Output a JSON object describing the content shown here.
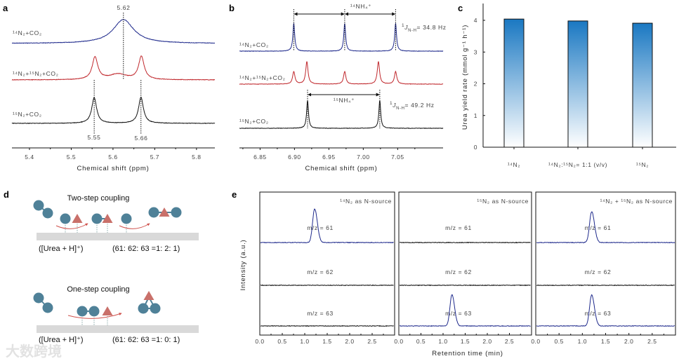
{
  "panel_labels": {
    "a": "a",
    "b": "b",
    "c": "c",
    "d": "d",
    "e": "e"
  },
  "colors": {
    "blue": "#1f2a8c",
    "red": "#c0282d",
    "black": "#111111",
    "bar_top": "#1a78c2",
    "bar_bottom": "#ffffff",
    "circle": "#4f8198",
    "triangle": "#c9706a",
    "surface": "#d9d9d9",
    "arrow": "#d0534e"
  },
  "chart_data": [
    {
      "panel": "a",
      "type": "line",
      "title": "",
      "xlabel": "Chemical shift (ppm)",
      "ylabel": "",
      "xlim": [
        5.358,
        5.844
      ],
      "xticks": [
        "5.4",
        "5.5",
        "5.6",
        "5.7",
        "5.8"
      ],
      "series": [
        {
          "name": "¹⁴N₂+CO₂",
          "color": "blue",
          "peaks": [
            {
              "x": 5.625,
              "h": 0.85,
              "w": 0.03
            }
          ]
        },
        {
          "name": "¹⁴N₂+¹⁵N₂+CO₂",
          "color": "red",
          "peaks": [
            {
              "x": 5.557,
              "h": 0.8,
              "w": 0.008
            },
            {
              "x": 5.668,
              "h": 0.82,
              "w": 0.008
            },
            {
              "x": 5.612,
              "h": 0.2,
              "w": 0.025
            }
          ]
        },
        {
          "name": "¹⁵N₂+CO₂",
          "color": "black",
          "peaks": [
            {
              "x": 5.555,
              "h": 0.92,
              "w": 0.007
            },
            {
              "x": 5.667,
              "h": 0.93,
              "w": 0.007
            }
          ]
        }
      ],
      "annotations": [
        {
          "text": "5.62",
          "x": 5.625
        },
        {
          "text": "5.55",
          "x": 5.555
        },
        {
          "text": "5.66",
          "x": 5.667
        }
      ]
    },
    {
      "panel": "b",
      "type": "line",
      "xlabel": "Chemical shift (ppm)",
      "xlim": [
        6.82,
        7.116
      ],
      "xticks": [
        "6.85",
        "6.90",
        "6.95",
        "7.00",
        "7.05"
      ],
      "series": [
        {
          "name": "¹⁴N₂+CO₂",
          "color": "blue",
          "peaks": [
            {
              "x": 6.899,
              "h": 1.0,
              "w": 0.0016
            },
            {
              "x": 6.973,
              "h": 1.0,
              "w": 0.0016
            },
            {
              "x": 7.047,
              "h": 1.0,
              "w": 0.0016
            }
          ]
        },
        {
          "name": "¹⁴N₂+¹⁵N₂+CO₂",
          "color": "red",
          "peaks": [
            {
              "x": 6.899,
              "h": 0.45,
              "w": 0.002
            },
            {
              "x": 6.918,
              "h": 0.8,
              "w": 0.002
            },
            {
              "x": 6.973,
              "h": 0.45,
              "w": 0.002
            },
            {
              "x": 7.022,
              "h": 0.8,
              "w": 0.002
            },
            {
              "x": 7.047,
              "h": 0.45,
              "w": 0.002
            }
          ]
        },
        {
          "name": "¹⁵N₂+CO₂",
          "color": "black",
          "peaks": [
            {
              "x": 6.919,
              "h": 1.0,
              "w": 0.0016
            },
            {
              "x": 7.024,
              "h": 1.0,
              "w": 0.0016
            }
          ]
        }
      ],
      "annotations": {
        "nh4_14": "¹⁴NH₄⁺",
        "nh4_15": "¹⁵NH₄⁺",
        "j14": {
          "sup": "1",
          "J": "J",
          "sub": "N-H",
          "value": "= 34.8 Hz"
        },
        "j15": {
          "sup": "1",
          "J": "J",
          "sub": "N-H",
          "value": "= 49.2 Hz"
        }
      }
    },
    {
      "panel": "c",
      "type": "bar",
      "xlabel": "",
      "ylabel": "Urea yield rate (mmol g⁻¹ h⁻¹)",
      "ylim": [
        0,
        4.5
      ],
      "yticks": [
        "0",
        "1",
        "2",
        "3",
        "4"
      ],
      "categories": [
        "¹⁴N₂",
        "¹⁴N₂:¹⁵N₂= 1:1 (v/v)",
        "¹⁵N₂"
      ],
      "values": [
        4.04,
        3.98,
        3.91
      ]
    },
    {
      "panel": "e",
      "type": "line",
      "xlabel": "Retention time (min)",
      "ylabel": "Intensity (a.u.)",
      "xlim": [
        0,
        3
      ],
      "xticks": [
        "0.0",
        "0.5",
        "1.0",
        "1.5",
        "2.0",
        "2.5"
      ],
      "channels": [
        "m/z = 61",
        "m/z = 62",
        "m/z = 63"
      ],
      "subplots": [
        {
          "title": "¹⁴N₂ as N-source",
          "traces": [
            {
              "channel": 61,
              "color": "blue",
              "peak_t": 1.22,
              "h": 1.0
            },
            {
              "channel": 62,
              "color": "black",
              "peak_t": null,
              "h": 0
            },
            {
              "channel": 63,
              "color": "black",
              "peak_t": null,
              "h": 0
            }
          ]
        },
        {
          "title": "¹⁵N₂ as N-source",
          "traces": [
            {
              "channel": 61,
              "color": "black",
              "peak_t": null,
              "h": 0
            },
            {
              "channel": 62,
              "color": "black",
              "peak_t": null,
              "h": 0
            },
            {
              "channel": 63,
              "color": "blue",
              "peak_t": 1.2,
              "h": 0.93
            }
          ]
        },
        {
          "title": "¹⁴N₂ + ¹⁵N₂ as N-source",
          "traces": [
            {
              "channel": 61,
              "color": "blue",
              "peak_t": 1.2,
              "h": 0.92
            },
            {
              "channel": 62,
              "color": "black",
              "peak_t": null,
              "h": 0
            },
            {
              "channel": 63,
              "color": "blue",
              "peak_t": 1.2,
              "h": 0.92
            }
          ]
        }
      ]
    }
  ],
  "diagram": {
    "two_step": {
      "title": "Two-step coupling",
      "ion": "([Urea + H]⁺)",
      "ratio": "(61: 62: 63 =1: 2: 1)"
    },
    "one_step": {
      "title": "One-step coupling",
      "ion": "([Urea + H]⁺)",
      "ratio": "(61: 62: 63 =1: 0: 1)"
    }
  },
  "watermark": "大数跨境"
}
